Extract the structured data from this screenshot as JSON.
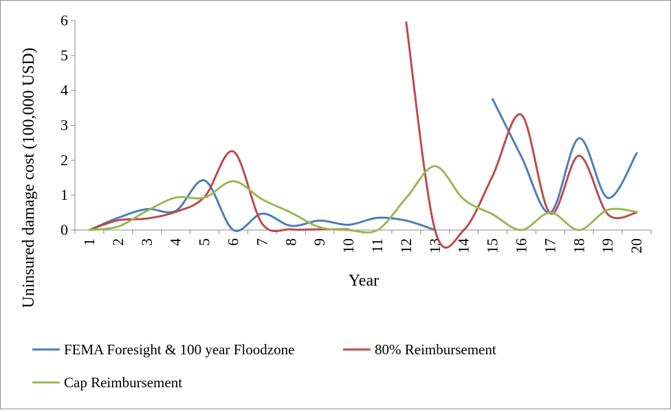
{
  "chart_data": {
    "type": "line",
    "smooth": true,
    "x": [
      1,
      2,
      3,
      4,
      5,
      6,
      7,
      8,
      9,
      10,
      11,
      12,
      13,
      14,
      15,
      16,
      17,
      18,
      19,
      20
    ],
    "categories": [
      "1",
      "2",
      "3",
      "4",
      "5",
      "6",
      "7",
      "8",
      "9",
      "10",
      "11",
      "12",
      "13",
      "14",
      "15",
      "16",
      "17",
      "18",
      "19",
      "20"
    ],
    "xlabel": "Year",
    "ylabel": "Uninsured damage cost (100,000 USD)",
    "ylim": [
      0,
      6
    ],
    "yticks": [
      "0",
      "1",
      "2",
      "3",
      "4",
      "5",
      "6"
    ],
    "grid": false,
    "legend_position": "bottom",
    "series": [
      {
        "name": "FEMA Foresight & 100 year Floodzone",
        "color": "#4a7ebb",
        "values": [
          0,
          0.35,
          0.6,
          0.55,
          1.42,
          0,
          0.47,
          0.12,
          0.27,
          0.15,
          0.35,
          0.27,
          0,
          null,
          3.75,
          2.1,
          0.5,
          2.63,
          0.92,
          2.2
        ]
      },
      {
        "name": "80% Reimbursement",
        "color": "#be4b48",
        "values": [
          0,
          0.28,
          0.33,
          0.52,
          0.95,
          2.25,
          0.18,
          0.02,
          0.02,
          0.02,
          null,
          5.95,
          0,
          0,
          1.55,
          3.3,
          0.48,
          2.13,
          0.45,
          0.5
        ]
      },
      {
        "name": "Cap Reimbursement",
        "color": "#98b954",
        "values": [
          0,
          0.1,
          0.55,
          0.93,
          0.93,
          1.4,
          0.88,
          0.5,
          0.08,
          0,
          0,
          0.92,
          1.83,
          0.88,
          0.45,
          0,
          0.5,
          0,
          0.58,
          0.52
        ]
      }
    ]
  }
}
